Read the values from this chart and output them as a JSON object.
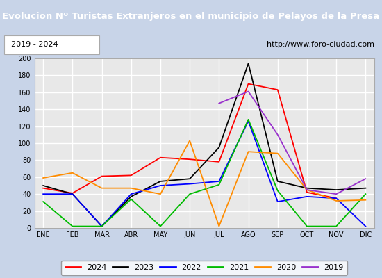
{
  "title": "Evolucion Nº Turistas Extranjeros en el municipio de Pelayos de la Presa",
  "subtitle_left": "2019 - 2024",
  "subtitle_right": "http://www.foro-ciudad.com",
  "months": [
    "ENE",
    "FEB",
    "MAR",
    "ABR",
    "MAY",
    "JUN",
    "JUL",
    "AGO",
    "SEP",
    "OCT",
    "NOV",
    "DIC"
  ],
  "title_bg": "#5b8dd9",
  "title_color": "#ffffff",
  "outer_bg": "#c8d4e8",
  "plot_bg": "#e8e8e8",
  "grid_color": "#ffffff",
  "series": {
    "2024": {
      "color": "#ff0000",
      "data": [
        47,
        41,
        61,
        62,
        83,
        81,
        78,
        170,
        163,
        42,
        35,
        null
      ]
    },
    "2023": {
      "color": "#000000",
      "data": [
        50,
        40,
        2,
        37,
        55,
        58,
        95,
        194,
        55,
        47,
        45,
        47
      ]
    },
    "2022": {
      "color": "#0000ff",
      "data": [
        40,
        40,
        2,
        40,
        50,
        52,
        55,
        126,
        31,
        37,
        35,
        2
      ]
    },
    "2021": {
      "color": "#00bb00",
      "data": [
        31,
        2,
        2,
        34,
        2,
        40,
        51,
        128,
        44,
        2,
        2,
        40
      ]
    },
    "2020": {
      "color": "#ff8c00",
      "data": [
        59,
        65,
        47,
        47,
        40,
        103,
        2,
        90,
        88,
        45,
        32,
        33
      ]
    },
    "2019": {
      "color": "#9932cc",
      "data": [
        null,
        null,
        null,
        null,
        null,
        null,
        147,
        161,
        110,
        45,
        40,
        58
      ]
    }
  },
  "ylim": [
    0,
    200
  ],
  "yticks": [
    0,
    20,
    40,
    60,
    80,
    100,
    120,
    140,
    160,
    180,
    200
  ]
}
